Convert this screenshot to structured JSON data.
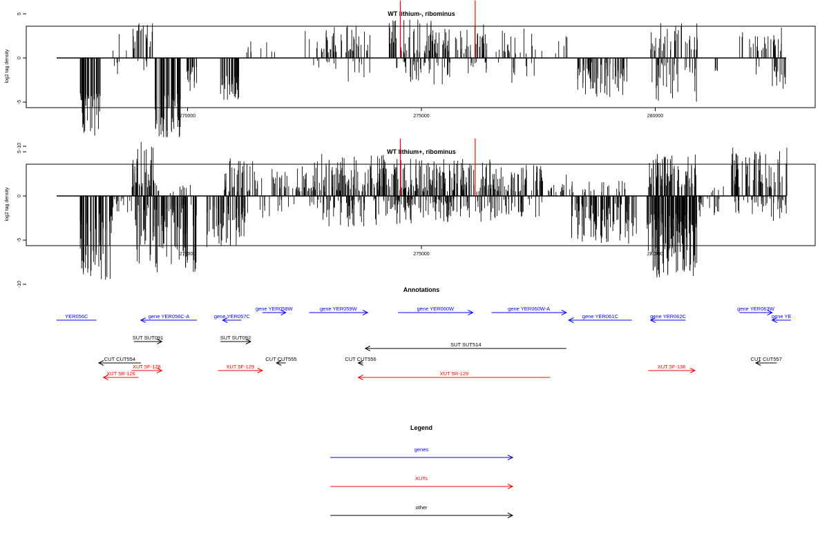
{
  "chart_data": [
    {
      "type": "bar",
      "title": "WT lithium-, ribominus",
      "ylabel": "log2 tag density",
      "xlabel": "",
      "xlim": [
        267200,
        282800
      ],
      "ylim": [
        -10,
        7
      ],
      "yticks": [
        -10,
        -5,
        0,
        5
      ],
      "xticks": [
        270000,
        275000,
        280000
      ],
      "grid": false,
      "markers": [
        274550,
        276150
      ],
      "marker_color": "#ff0000",
      "regions": [
        {
          "x0": 267700,
          "x1": 268150,
          "side": "neg",
          "min": 4,
          "max": 9.5,
          "n": 40
        },
        {
          "x0": 268250,
          "x1": 268550,
          "side": "neg",
          "min": 0.4,
          "max": 2,
          "n": 4
        },
        {
          "x0": 268400,
          "x1": 268700,
          "side": "pos",
          "min": 0.6,
          "max": 3.5,
          "n": 3
        },
        {
          "x0": 268800,
          "x1": 269250,
          "side": "pos",
          "min": 1,
          "max": 4.2,
          "n": 20
        },
        {
          "x0": 268900,
          "x1": 269150,
          "side": "neg",
          "min": 0.3,
          "max": 1.5,
          "n": 5
        },
        {
          "x0": 269300,
          "x1": 269850,
          "side": "neg",
          "min": 4,
          "max": 9,
          "n": 55
        },
        {
          "x0": 269950,
          "x1": 270200,
          "side": "neg",
          "min": 1,
          "max": 4.5,
          "n": 15
        },
        {
          "x0": 270700,
          "x1": 271100,
          "side": "neg",
          "min": 2,
          "max": 4.8,
          "n": 35
        },
        {
          "x0": 271100,
          "x1": 271400,
          "side": "pos",
          "min": 0.5,
          "max": 2,
          "n": 5
        },
        {
          "x0": 271500,
          "x1": 271900,
          "side": "pos",
          "min": 0.4,
          "max": 3.2,
          "n": 4
        },
        {
          "x0": 272500,
          "x1": 273200,
          "side": "pos",
          "min": 0.5,
          "max": 3.5,
          "n": 25
        },
        {
          "x0": 272600,
          "x1": 273200,
          "side": "neg",
          "min": 0.3,
          "max": 1.5,
          "n": 8
        },
        {
          "x0": 273250,
          "x1": 273900,
          "side": "pos",
          "min": 0.6,
          "max": 3.8,
          "n": 25
        },
        {
          "x0": 273400,
          "x1": 274000,
          "side": "neg",
          "min": 0.3,
          "max": 2.8,
          "n": 8
        },
        {
          "x0": 274300,
          "x1": 275600,
          "side": "pos",
          "min": 0.5,
          "max": 4.5,
          "n": 70
        },
        {
          "x0": 274400,
          "x1": 275700,
          "side": "neg",
          "min": 0.3,
          "max": 3,
          "n": 40
        },
        {
          "x0": 275700,
          "x1": 276400,
          "side": "pos",
          "min": 0.5,
          "max": 3.8,
          "n": 30
        },
        {
          "x0": 275900,
          "x1": 276400,
          "side": "neg",
          "min": 0.3,
          "max": 2,
          "n": 10
        },
        {
          "x0": 276500,
          "x1": 277600,
          "side": "pos",
          "min": 0.5,
          "max": 3.5,
          "n": 20
        },
        {
          "x0": 276600,
          "x1": 277500,
          "side": "neg",
          "min": 0.4,
          "max": 3.3,
          "n": 10
        },
        {
          "x0": 277700,
          "x1": 278200,
          "side": "pos",
          "min": 0.4,
          "max": 2.5,
          "n": 5
        },
        {
          "x0": 278300,
          "x1": 279400,
          "side": "neg",
          "min": 0.5,
          "max": 4.5,
          "n": 60
        },
        {
          "x0": 279900,
          "x1": 280900,
          "side": "pos",
          "min": 0.8,
          "max": 4,
          "n": 40
        },
        {
          "x0": 279900,
          "x1": 280900,
          "side": "neg",
          "min": 0.5,
          "max": 5,
          "n": 30
        },
        {
          "x0": 281100,
          "x1": 281400,
          "side": "neg",
          "min": 0.3,
          "max": 2,
          "n": 4
        },
        {
          "x0": 281800,
          "x1": 282700,
          "side": "pos",
          "min": 0.8,
          "max": 3.5,
          "n": 30
        },
        {
          "x0": 282100,
          "x1": 282300,
          "side": "neg",
          "min": 0.3,
          "max": 2,
          "n": 3
        },
        {
          "x0": 282500,
          "x1": 282850,
          "side": "neg",
          "min": 1,
          "max": 3.5,
          "n": 15
        }
      ]
    },
    {
      "type": "bar",
      "title": "WT lithium+, ribominus",
      "ylabel": "log2 tag density",
      "xlabel": "",
      "xlim": [
        267200,
        282800
      ],
      "ylim": [
        -10,
        7
      ],
      "yticks": [
        -10,
        -5,
        0,
        5
      ],
      "xticks": [
        270000,
        275000,
        280000
      ],
      "grid": false,
      "markers": [
        274550,
        276150
      ],
      "marker_color": "#ff0000",
      "regions": [
        {
          "x0": 267700,
          "x1": 268400,
          "side": "neg",
          "min": 2,
          "max": 9.5,
          "n": 60
        },
        {
          "x0": 268400,
          "x1": 268850,
          "side": "neg",
          "min": 0.3,
          "max": 2,
          "n": 12
        },
        {
          "x0": 268800,
          "x1": 269300,
          "side": "pos",
          "min": 1,
          "max": 6.2,
          "n": 40
        },
        {
          "x0": 268850,
          "x1": 270200,
          "side": "neg",
          "min": 1,
          "max": 8.8,
          "n": 100
        },
        {
          "x0": 269300,
          "x1": 270100,
          "side": "pos",
          "min": 0.3,
          "max": 1.5,
          "n": 12
        },
        {
          "x0": 270400,
          "x1": 271300,
          "side": "neg",
          "min": 1,
          "max": 6,
          "n": 60
        },
        {
          "x0": 270750,
          "x1": 271600,
          "side": "pos",
          "min": 0.5,
          "max": 4.5,
          "n": 40
        },
        {
          "x0": 271500,
          "x1": 272300,
          "side": "neg",
          "min": 0.3,
          "max": 2.5,
          "n": 12
        },
        {
          "x0": 271800,
          "x1": 272600,
          "side": "pos",
          "min": 0.5,
          "max": 3.5,
          "n": 35
        },
        {
          "x0": 272600,
          "x1": 274400,
          "side": "pos",
          "min": 0.5,
          "max": 4.8,
          "n": 110
        },
        {
          "x0": 272600,
          "x1": 274400,
          "side": "neg",
          "min": 0.3,
          "max": 3.5,
          "n": 60
        },
        {
          "x0": 274400,
          "x1": 276600,
          "side": "pos",
          "min": 0.5,
          "max": 4.2,
          "n": 150
        },
        {
          "x0": 274400,
          "x1": 276600,
          "side": "neg",
          "min": 0.3,
          "max": 3.2,
          "n": 100
        },
        {
          "x0": 276600,
          "x1": 277600,
          "side": "pos",
          "min": 0.5,
          "max": 3.5,
          "n": 50
        },
        {
          "x0": 276600,
          "x1": 277600,
          "side": "neg",
          "min": 0.3,
          "max": 2.5,
          "n": 30
        },
        {
          "x0": 277700,
          "x1": 278300,
          "side": "pos",
          "min": 0.3,
          "max": 2.5,
          "n": 18
        },
        {
          "x0": 278200,
          "x1": 279600,
          "side": "neg",
          "min": 0.8,
          "max": 5.5,
          "n": 90
        },
        {
          "x0": 278400,
          "x1": 279400,
          "side": "pos",
          "min": 0.3,
          "max": 1.8,
          "n": 20
        },
        {
          "x0": 279800,
          "x1": 280900,
          "side": "neg",
          "min": 2,
          "max": 9.3,
          "n": 130
        },
        {
          "x0": 279850,
          "x1": 280900,
          "side": "pos",
          "min": 1,
          "max": 4.8,
          "n": 80
        },
        {
          "x0": 280900,
          "x1": 281400,
          "side": "neg",
          "min": 0.3,
          "max": 2.5,
          "n": 15
        },
        {
          "x0": 281200,
          "x1": 281500,
          "side": "pos",
          "min": 0.3,
          "max": 1.2,
          "n": 5
        },
        {
          "x0": 281600,
          "x1": 282850,
          "side": "pos",
          "min": 0.8,
          "max": 5.5,
          "n": 70
        },
        {
          "x0": 281700,
          "x1": 282850,
          "side": "neg",
          "min": 0.3,
          "max": 3,
          "n": 35
        }
      ]
    }
  ],
  "annotations": {
    "title": "Annotations",
    "features": [
      {
        "label": "YER056C",
        "color": "#0000ff",
        "x0": 267200,
        "x1": 268050,
        "dir": "none",
        "row": 0
      },
      {
        "label": "gene YER056C-A",
        "color": "#0000ff",
        "x0": 269000,
        "x1": 270200,
        "dir": "left",
        "row": 0
      },
      {
        "label": "gene YER057C",
        "color": "#0000ff",
        "x0": 270750,
        "x1": 271150,
        "dir": "left",
        "row": 0
      },
      {
        "label": "gene YER058W",
        "color": "#0000ff",
        "x0": 271600,
        "x1": 272100,
        "dir": "right",
        "row": -1
      },
      {
        "label": "gene YER059W",
        "color": "#0000ff",
        "x0": 272600,
        "x1": 273850,
        "dir": "right",
        "row": -1
      },
      {
        "label": "gene YER060W",
        "color": "#0000ff",
        "x0": 274500,
        "x1": 276100,
        "dir": "right",
        "row": -1
      },
      {
        "label": "gene YER060W-A",
        "color": "#0000ff",
        "x0": 276500,
        "x1": 278100,
        "dir": "right",
        "row": -1
      },
      {
        "label": "gene YER061C",
        "color": "#0000ff",
        "x0": 278150,
        "x1": 279500,
        "dir": "left",
        "row": 0
      },
      {
        "label": "gene YER062C",
        "color": "#0000ff",
        "x0": 279900,
        "x1": 280650,
        "dir": "left",
        "row": 0
      },
      {
        "label": "gene YER063W",
        "color": "#0000ff",
        "x0": 281800,
        "x1": 282500,
        "dir": "right",
        "row": -1
      },
      {
        "label": "gene YE",
        "color": "#0000ff",
        "x0": 282500,
        "x1": 282900,
        "dir": "left",
        "row": 0
      },
      {
        "label": "SUT SUT091",
        "color": "#000000",
        "x0": 268850,
        "x1": 269450,
        "dir": "right",
        "row": 1
      },
      {
        "label": "SUT SUT092",
        "color": "#000000",
        "x0": 270700,
        "x1": 271350,
        "dir": "right",
        "row": 1
      },
      {
        "label": "SUT SUT514",
        "color": "#000000",
        "x0": 273800,
        "x1": 278100,
        "dir": "left",
        "row": 2
      },
      {
        "label": "CUT CUT554",
        "color": "#000000",
        "x0": 268100,
        "x1": 269000,
        "dir": "left",
        "row": 3
      },
      {
        "label": "CUT CUT555",
        "color": "#000000",
        "x0": 271900,
        "x1": 272100,
        "dir": "left",
        "row": 3
      },
      {
        "label": "CUT CUT556",
        "color": "#000000",
        "x0": 273650,
        "x1": 273750,
        "dir": "left",
        "row": 3
      },
      {
        "label": "CUT CUT557",
        "color": "#000000",
        "x0": 282150,
        "x1": 282600,
        "dir": "left",
        "row": 3
      },
      {
        "label": "XUT 5F-128",
        "color": "#ff0000",
        "x0": 268800,
        "x1": 269450,
        "dir": "right",
        "row": 4
      },
      {
        "label": "XUT 5R-126",
        "color": "#ff0000",
        "x0": 268200,
        "x1": 268950,
        "dir": "left",
        "row": 5
      },
      {
        "label": "XUT 5F-129",
        "color": "#ff0000",
        "x0": 270650,
        "x1": 271600,
        "dir": "right",
        "row": 4
      },
      {
        "label": "XUT 5R-129",
        "color": "#ff0000",
        "x0": 273650,
        "x1": 277750,
        "dir": "left",
        "row": 5
      },
      {
        "label": "XUT 5F-136",
        "color": "#ff0000",
        "x0": 279850,
        "x1": 280850,
        "dir": "right",
        "row": 4
      }
    ]
  },
  "legend": {
    "title": "Legend",
    "entries": [
      {
        "label": "genes",
        "color": "#0000ff"
      },
      {
        "label": "XUTs",
        "color": "#ff0000"
      },
      {
        "label": "other",
        "color": "#000000"
      }
    ]
  }
}
